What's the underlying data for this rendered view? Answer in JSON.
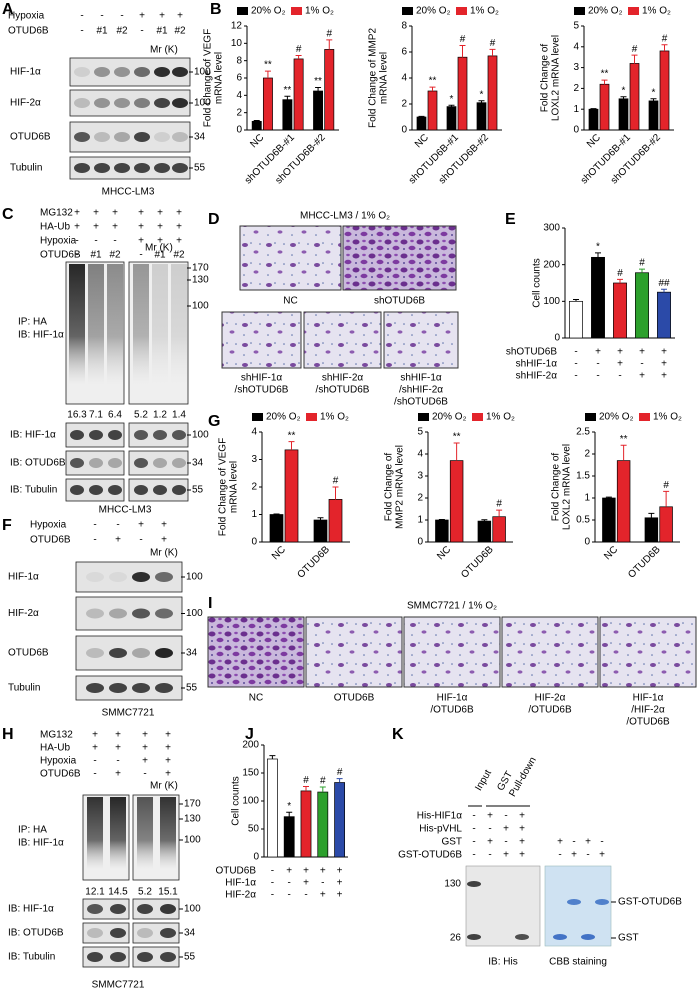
{
  "panels": {
    "A": {
      "letter": "A",
      "rows": [
        {
          "label": "Hypoxia",
          "lanes": [
            "-",
            "-",
            "-",
            "+",
            "+",
            "+"
          ]
        },
        {
          "label": "OTUD6B",
          "lanes": [
            "-",
            "#1",
            "#2",
            "-",
            "#1",
            "#2"
          ]
        }
      ],
      "mr": "Mr (K)",
      "blots": [
        {
          "label": "HIF-1α",
          "marker": 100
        },
        {
          "label": "HIF-2α",
          "marker": 100
        },
        {
          "label": "OTUD6B",
          "marker": 34
        },
        {
          "label": "Tubulin",
          "marker": 55
        }
      ],
      "caption": "MHCC-LM3"
    },
    "B": {
      "letter": "B"
    },
    "C": {
      "letter": "C",
      "rows": [
        {
          "label": "MG132",
          "lanes": [
            "+",
            "+",
            "+",
            "+",
            "+",
            "+"
          ]
        },
        {
          "label": "HA-Ub",
          "lanes": [
            "+",
            "+",
            "+",
            "+",
            "+",
            "+"
          ]
        },
        {
          "label": "Hypoxia",
          "lanes": [
            "-",
            "-",
            "-",
            "+",
            "+",
            "+"
          ]
        },
        {
          "label": "OTUD6B",
          "lanes": [
            "-",
            "#1",
            "#2",
            "-",
            "#1",
            "#2"
          ]
        }
      ],
      "mr": "Mr (K)",
      "ip_markers": [
        170,
        130,
        100
      ],
      "ip_label": [
        "IP: HA",
        "IB: HIF-1α"
      ],
      "quant": [
        16.3,
        7.1,
        6.4,
        5.2,
        1.2,
        1.4
      ],
      "blots": [
        {
          "label": "IB: HIF-1α",
          "marker": 100
        },
        {
          "label": "IB: OTUD6B",
          "marker": 34
        },
        {
          "label": "IB: Tubulin",
          "marker": 55
        }
      ],
      "caption": "MHCC-LM3"
    },
    "D": {
      "letter": "D",
      "title": "MHCC-LM3 / 1% O₂",
      "images": [
        [
          "NC"
        ],
        [
          "shOTUD6B"
        ],
        [
          "shHIF-1α",
          "/shOTUD6B"
        ],
        [
          "shHIF-2α",
          "/shOTUD6B"
        ],
        [
          "shHIF-1α",
          "/shHIF-2α",
          "/shOTUD6B"
        ]
      ]
    },
    "E": {
      "letter": "E"
    },
    "F": {
      "letter": "F",
      "rows": [
        {
          "label": "Hypoxia",
          "lanes": [
            "-",
            "-",
            "+",
            "+"
          ]
        },
        {
          "label": "OTUD6B",
          "lanes": [
            "-",
            "+",
            "-",
            "+"
          ]
        }
      ],
      "mr": "Mr (K)",
      "blots": [
        {
          "label": "HIF-1α",
          "marker": 100
        },
        {
          "label": "HIF-2α",
          "marker": 100
        },
        {
          "label": "OTUD6B",
          "marker": 34
        },
        {
          "label": "Tubulin",
          "marker": 55
        }
      ],
      "caption": "SMMC7721"
    },
    "G": {
      "letter": "G"
    },
    "H": {
      "letter": "H",
      "rows": [
        {
          "label": "MG132",
          "lanes": [
            "+",
            "+",
            "+",
            "+"
          ]
        },
        {
          "label": "HA-Ub",
          "lanes": [
            "+",
            "+",
            "+",
            "+"
          ]
        },
        {
          "label": "Hypoxia",
          "lanes": [
            "-",
            "-",
            "+",
            "+"
          ]
        },
        {
          "label": "OTUD6B",
          "lanes": [
            "-",
            "+",
            "-",
            "+"
          ]
        }
      ],
      "mr": "Mr (K)",
      "ip_markers": [
        170,
        130,
        100
      ],
      "ip_label": [
        "IP: HA",
        "IB: HIF-1α"
      ],
      "quant": [
        12.1,
        14.5,
        5.2,
        15.1
      ],
      "blots": [
        {
          "label": "IB: HIF-1α",
          "marker": 100
        },
        {
          "label": "IB: OTUD6B",
          "marker": 34
        },
        {
          "label": "IB: Tubulin",
          "marker": 55
        }
      ],
      "caption": "SMMC7721"
    },
    "I": {
      "letter": "I",
      "title": "SMMC7721 / 1% O₂",
      "images": [
        [
          "NC"
        ],
        [
          "OTUD6B"
        ],
        [
          "HIF-1α",
          "/OTUD6B"
        ],
        [
          "HIF-2α",
          "/OTUD6B"
        ],
        [
          "HIF-1α",
          "/HIF-2α",
          "/OTUD6B"
        ]
      ]
    },
    "J": {
      "letter": "J"
    },
    "K": {
      "letter": "K",
      "headers": [
        "Input",
        "GST",
        "Pull-down"
      ],
      "rows": [
        {
          "label": "His-HIF1α",
          "lanes": [
            "-",
            "+",
            "-",
            "+",
            null,
            null,
            null,
            null
          ]
        },
        {
          "label": "His-pVHL",
          "lanes": [
            "-",
            "-",
            "+",
            "+",
            null,
            null,
            null,
            null
          ]
        },
        {
          "label": "GST",
          "lanes": [
            "-",
            "+",
            "-",
            "+",
            "+",
            "-",
            "+",
            "-"
          ]
        },
        {
          "label": "GST-OTUD6B",
          "lanes": [
            "-",
            "-",
            "+",
            "+",
            "-",
            "+",
            "-",
            "+"
          ]
        }
      ],
      "markers": [
        130,
        26
      ],
      "bands": [
        "GST-OTUD6B",
        "GST"
      ],
      "captions": [
        "IB: His",
        "CBB staining"
      ]
    }
  },
  "chart_data": [
    {
      "type": "bar",
      "ylabel": [
        "Fold Change of VEGF",
        "mRNA level"
      ],
      "categories": [
        "NC",
        "shOTUD6B-#1",
        "shOTUD6B-#2"
      ],
      "series": [
        {
          "name": "20% O₂",
          "color": "#000000",
          "values": [
            1,
            3.5,
            4.5
          ],
          "errors": [
            0.1,
            0.4,
            0.4
          ],
          "sig": [
            null,
            "**",
            "**"
          ]
        },
        {
          "name": "1% O₂",
          "color": "#e3242b",
          "values": [
            6,
            8.2,
            9.3
          ],
          "errors": [
            0.8,
            0.4,
            1.1
          ],
          "sig": [
            "**",
            "#",
            "#"
          ]
        }
      ],
      "ylim": [
        0,
        12
      ],
      "yticks": [
        0,
        2,
        4,
        6,
        8,
        10,
        12
      ]
    },
    {
      "type": "bar",
      "ylabel": [
        "Fold Change of MMP2",
        "mRNA level"
      ],
      "categories": [
        "NC",
        "shOTUD6B-#1",
        "shOTUD6B-#2"
      ],
      "series": [
        {
          "name": "20% O₂",
          "color": "#000000",
          "values": [
            1,
            1.8,
            2.1
          ],
          "errors": [
            0.05,
            0.1,
            0.15
          ],
          "sig": [
            null,
            "*",
            "*"
          ]
        },
        {
          "name": "1% O₂",
          "color": "#e3242b",
          "values": [
            3,
            5.6,
            5.7
          ],
          "errors": [
            0.3,
            0.9,
            0.5
          ],
          "sig": [
            "**",
            "#",
            "#"
          ]
        }
      ],
      "ylim": [
        0,
        8
      ],
      "yticks": [
        0,
        2,
        4,
        6,
        8
      ]
    },
    {
      "type": "bar",
      "ylabel": [
        "Fold Change of",
        "LOXL2  mRNA level"
      ],
      "categories": [
        "NC",
        "shOTUD6B-#1",
        "shOTUD6B-#2"
      ],
      "series": [
        {
          "name": "20% O₂",
          "color": "#000000",
          "values": [
            1,
            1.5,
            1.4
          ],
          "errors": [
            0.03,
            0.1,
            0.1
          ],
          "sig": [
            null,
            "*",
            "*"
          ]
        },
        {
          "name": "1% O₂",
          "color": "#e3242b",
          "values": [
            2.2,
            3.2,
            3.8
          ],
          "errors": [
            0.2,
            0.4,
            0.3
          ],
          "sig": [
            "**",
            "#",
            "#"
          ]
        }
      ],
      "ylim": [
        0,
        5
      ],
      "yticks": [
        0,
        1,
        2,
        3,
        4,
        5
      ]
    },
    {
      "type": "bar",
      "ylabel": [
        "Cell counts"
      ],
      "values": [
        100,
        220,
        150,
        178,
        125
      ],
      "errors": [
        5,
        12,
        10,
        10,
        8
      ],
      "colors": [
        "#ffffff",
        "#000000",
        "#e3242b",
        "#2ca02c",
        "#2b4aa8"
      ],
      "sig": [
        null,
        "*",
        "#",
        "#",
        "##"
      ],
      "conditions": [
        {
          "label": "shOTUD6B",
          "signs": [
            "-",
            "+",
            "+",
            "+",
            "+"
          ]
        },
        {
          "label": "shHIF-1α",
          "signs": [
            "-",
            "-",
            "+",
            "-",
            "+"
          ]
        },
        {
          "label": "shHIF-2α",
          "signs": [
            "-",
            "-",
            "-",
            "+",
            "+"
          ]
        }
      ],
      "ylim": [
        0,
        300
      ],
      "yticks": [
        0,
        100,
        200,
        300
      ]
    },
    {
      "type": "bar",
      "ylabel": [
        "Fold Change of VEGF",
        "mRNA level"
      ],
      "categories": [
        "NC",
        "OTUD6B"
      ],
      "series": [
        {
          "name": "20% O₂",
          "color": "#000000",
          "values": [
            1,
            0.8
          ],
          "errors": [
            0.02,
            0.08
          ],
          "sig": [
            null,
            null
          ]
        },
        {
          "name": "1% O₂",
          "color": "#e3242b",
          "values": [
            3.35,
            1.55
          ],
          "errors": [
            0.3,
            0.45
          ],
          "sig": [
            "**",
            "#"
          ]
        }
      ],
      "ylim": [
        0,
        4
      ],
      "yticks": [
        0,
        1,
        2,
        3,
        4
      ]
    },
    {
      "type": "bar",
      "ylabel": [
        "Fold Change of",
        "MMP2 mRNA level"
      ],
      "categories": [
        "NC",
        "OTUD6B"
      ],
      "series": [
        {
          "name": "20% O₂",
          "color": "#000000",
          "values": [
            1,
            0.95
          ],
          "errors": [
            0.02,
            0.06
          ],
          "sig": [
            null,
            null
          ]
        },
        {
          "name": "1% O₂",
          "color": "#e3242b",
          "values": [
            3.7,
            1.15
          ],
          "errors": [
            0.8,
            0.3
          ],
          "sig": [
            "**",
            "#"
          ]
        }
      ],
      "ylim": [
        0,
        5
      ],
      "yticks": [
        0,
        1,
        2,
        3,
        4,
        5
      ]
    },
    {
      "type": "bar",
      "ylabel": [
        "Fold Change of",
        "LOXL2 mRNA level"
      ],
      "categories": [
        "NC",
        "OTUD6B"
      ],
      "series": [
        {
          "name": "20% O₂",
          "color": "#000000",
          "values": [
            1,
            0.55
          ],
          "errors": [
            0.02,
            0.1
          ],
          "sig": [
            null,
            null
          ]
        },
        {
          "name": "1% O₂",
          "color": "#e3242b",
          "values": [
            1.85,
            0.8
          ],
          "errors": [
            0.35,
            0.35
          ],
          "sig": [
            "**",
            "#"
          ]
        }
      ],
      "ylim": [
        0,
        2.5
      ],
      "yticks": [
        0,
        0.5,
        1,
        1.5,
        2,
        2.5
      ]
    },
    {
      "type": "bar",
      "ylabel": [
        "Cell counts"
      ],
      "values": [
        175,
        72,
        118,
        116,
        133
      ],
      "errors": [
        6,
        8,
        8,
        9,
        7
      ],
      "colors": [
        "#ffffff",
        "#000000",
        "#e3242b",
        "#2ca02c",
        "#2b4aa8"
      ],
      "sig": [
        null,
        "*",
        "#",
        "#",
        "#"
      ],
      "conditions": [
        {
          "label": "OTUD6B",
          "signs": [
            "-",
            "+",
            "+",
            "+",
            "+"
          ]
        },
        {
          "label": "HIF-1α",
          "signs": [
            "-",
            "-",
            "+",
            "-",
            "+"
          ]
        },
        {
          "label": "HIF-2α",
          "signs": [
            "-",
            "-",
            "-",
            "+",
            "+"
          ]
        }
      ],
      "ylim": [
        0,
        200
      ],
      "yticks": [
        0,
        50,
        100,
        150,
        200
      ]
    }
  ]
}
